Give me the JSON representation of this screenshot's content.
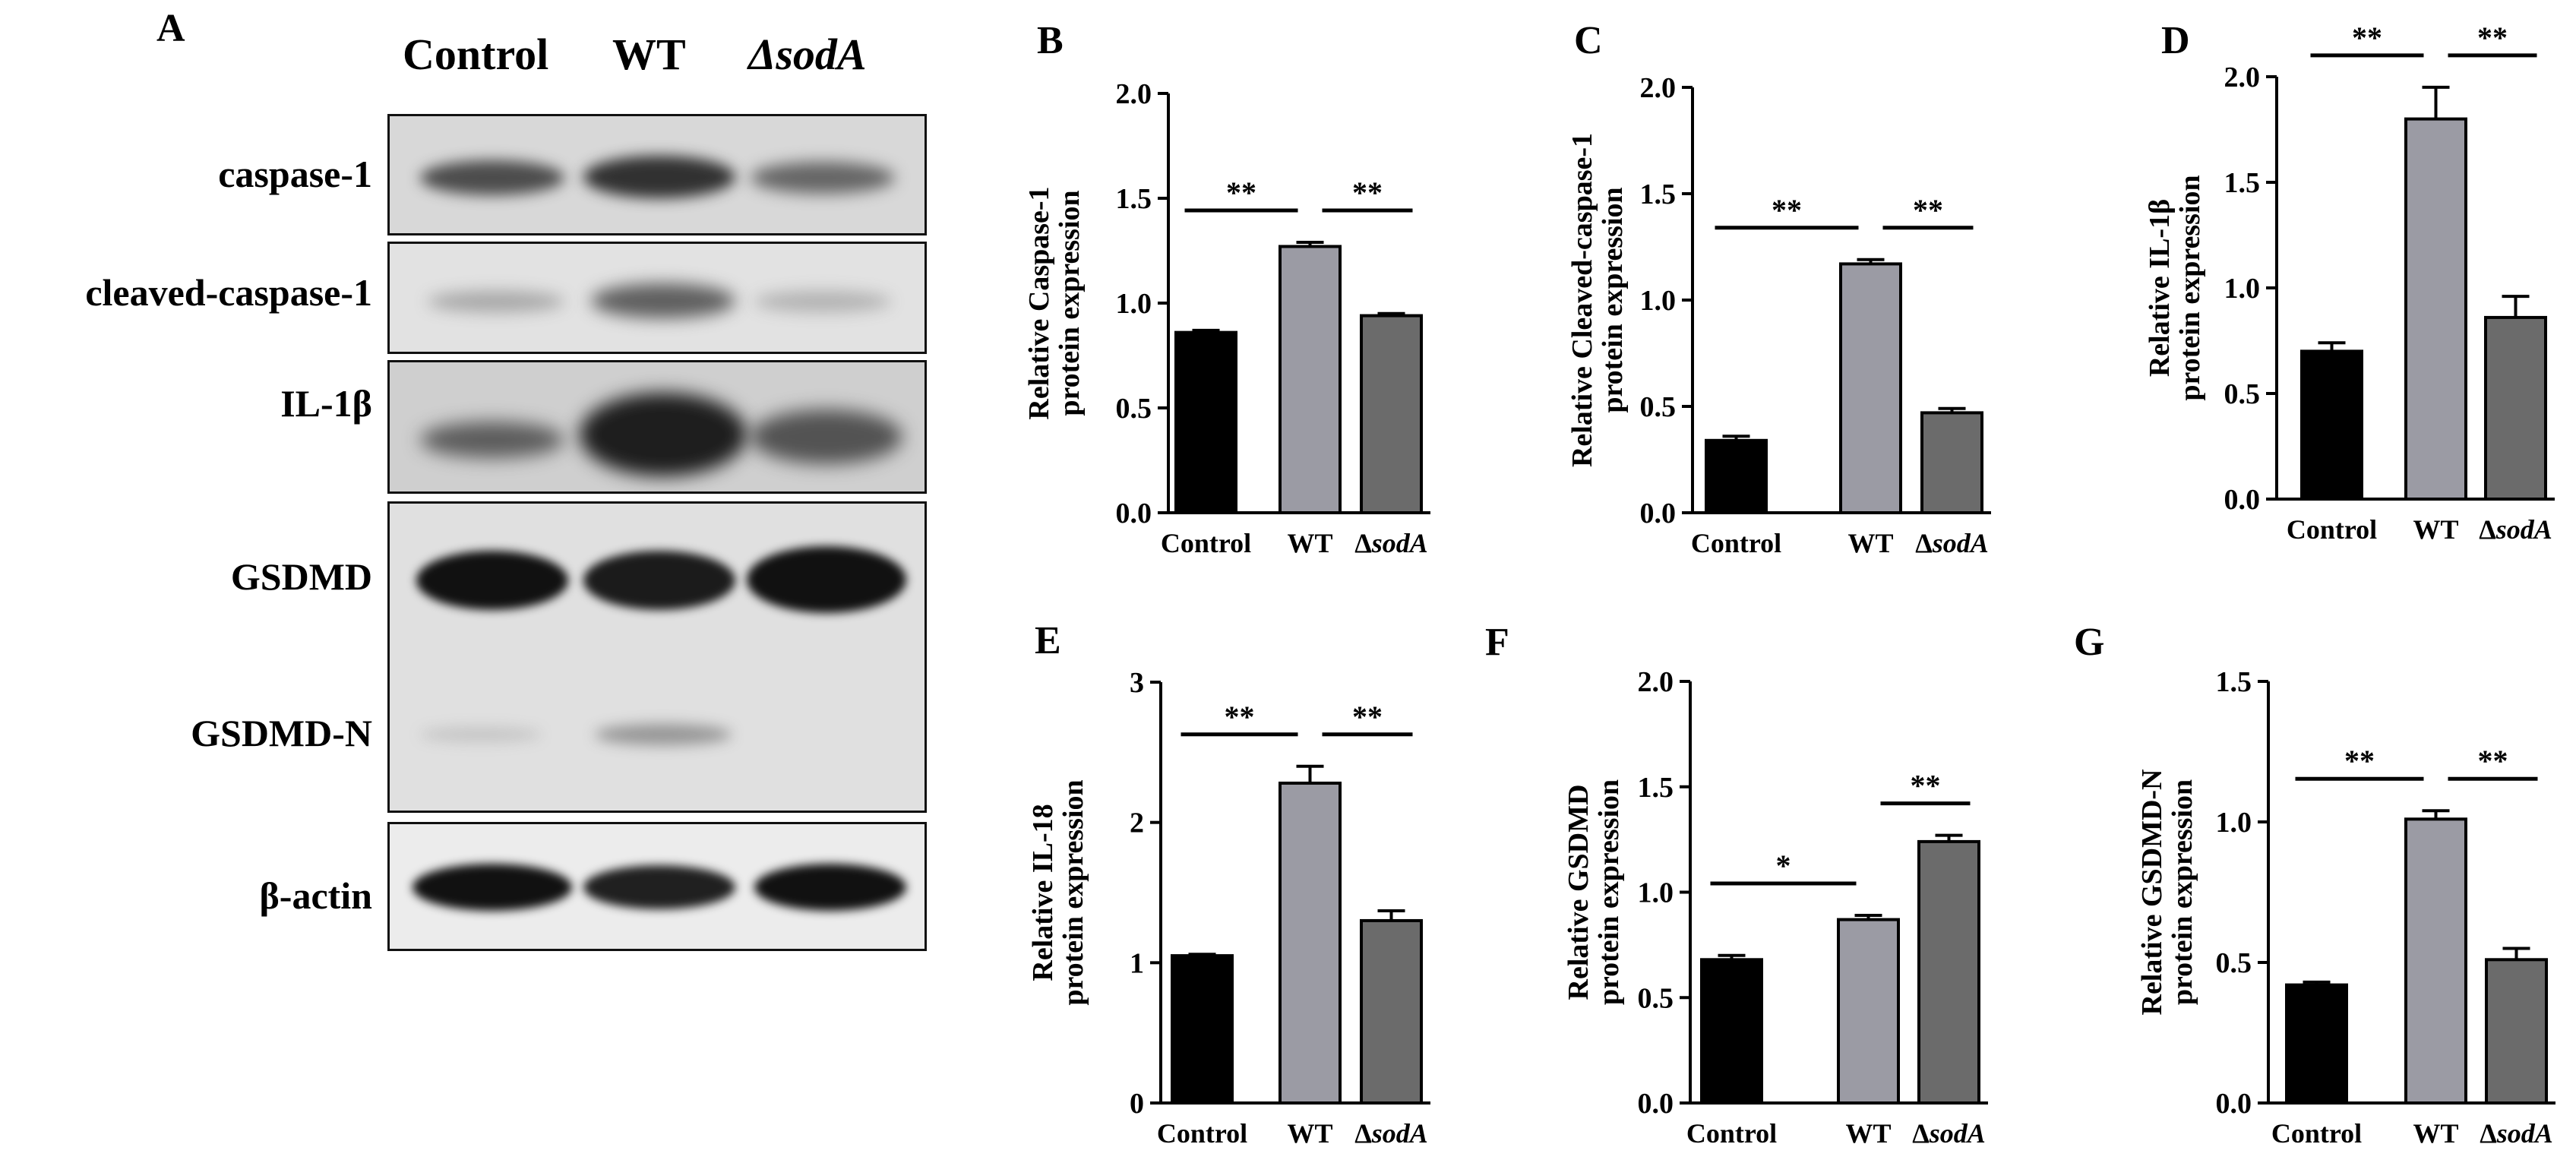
{
  "panel_a": {
    "letter": "A",
    "lanes": [
      "Control",
      "WT",
      "ΔsodA"
    ],
    "rows": [
      "caspase-1",
      "cleaved-caspase-1",
      "IL-1β",
      "GSDMD",
      "GSDMD-N",
      "β-actin"
    ]
  },
  "colors": {
    "control": "#000000",
    "wt": "#9b9ba4",
    "sodA": "#6b6b6b"
  },
  "chart_data": [
    {
      "letter": "B",
      "type": "bar",
      "categories": [
        "Control",
        "WT",
        "ΔsodA"
      ],
      "values": [
        0.86,
        1.27,
        0.94
      ],
      "errors": [
        0.01,
        0.02,
        0.01
      ],
      "ylabel": [
        "Relative Caspase-1",
        "protein expression"
      ],
      "ylim": [
        0,
        2.0
      ],
      "ticks": [
        "0.0",
        "0.5",
        "1.0",
        "1.5",
        "2.0"
      ],
      "significance": [
        {
          "from": 0,
          "to": 1,
          "label": "**"
        },
        {
          "from": 1,
          "to": 2,
          "label": "**"
        }
      ]
    },
    {
      "letter": "C",
      "type": "bar",
      "categories": [
        "Control",
        "WT",
        "ΔsodA"
      ],
      "values": [
        0.34,
        1.17,
        0.47
      ],
      "errors": [
        0.02,
        0.02,
        0.02
      ],
      "ylabel": [
        "Relative Cleaved-caspase-1",
        "protein expression"
      ],
      "ylim": [
        0,
        2.0
      ],
      "ticks": [
        "0.0",
        "0.5",
        "1.0",
        "1.5",
        "2.0"
      ],
      "significance": [
        {
          "from": 0,
          "to": 1,
          "label": "**"
        },
        {
          "from": 1,
          "to": 2,
          "label": "**"
        }
      ]
    },
    {
      "letter": "D",
      "type": "bar",
      "categories": [
        "Control",
        "WT",
        "ΔsodA"
      ],
      "values": [
        0.7,
        1.8,
        0.86
      ],
      "errors": [
        0.04,
        0.15,
        0.1
      ],
      "ylabel": [
        "Relative IL-1β",
        "protein expression"
      ],
      "ylim": [
        0,
        2.0
      ],
      "ticks": [
        "0.0",
        "0.5",
        "1.0",
        "1.5",
        "2.0"
      ],
      "significance": [
        {
          "from": 0,
          "to": 1,
          "label": "**"
        },
        {
          "from": 1,
          "to": 2,
          "label": "**"
        }
      ]
    },
    {
      "letter": "E",
      "type": "bar",
      "categories": [
        "Control",
        "WT",
        "ΔsodA"
      ],
      "values": [
        1.05,
        2.28,
        1.3
      ],
      "errors": [
        0.01,
        0.12,
        0.07
      ],
      "ylabel": [
        "Relative IL-18",
        "protein expression"
      ],
      "ylim": [
        0,
        3
      ],
      "ticks": [
        "0",
        "1",
        "2",
        "3"
      ],
      "significance": [
        {
          "from": 0,
          "to": 1,
          "label": "**"
        },
        {
          "from": 1,
          "to": 2,
          "label": "**"
        }
      ]
    },
    {
      "letter": "F",
      "type": "bar",
      "categories": [
        "Control",
        "WT",
        "ΔsodA"
      ],
      "values": [
        0.68,
        0.87,
        1.24
      ],
      "errors": [
        0.02,
        0.02,
        0.03
      ],
      "ylabel": [
        "Relative GSDMD",
        "protein expression"
      ],
      "ylim": [
        0,
        2.0
      ],
      "ticks": [
        "0.0",
        "0.5",
        "1.0",
        "1.5",
        "2.0"
      ],
      "significance": [
        {
          "from": 0,
          "to": 1,
          "label": "*"
        },
        {
          "from": 1,
          "to": 2,
          "label": "**"
        }
      ]
    },
    {
      "letter": "G",
      "type": "bar",
      "categories": [
        "Control",
        "WT",
        "ΔsodA"
      ],
      "values": [
        0.42,
        1.01,
        0.51
      ],
      "errors": [
        0.01,
        0.03,
        0.04
      ],
      "ylabel": [
        "Relative GSDMD-N",
        "protein expression"
      ],
      "ylim": [
        0,
        1.5
      ],
      "ticks": [
        "0.0",
        "0.5",
        "1.0",
        "1.5"
      ],
      "significance": [
        {
          "from": 0,
          "to": 1,
          "label": "**"
        },
        {
          "from": 1,
          "to": 2,
          "label": "**"
        }
      ]
    }
  ]
}
